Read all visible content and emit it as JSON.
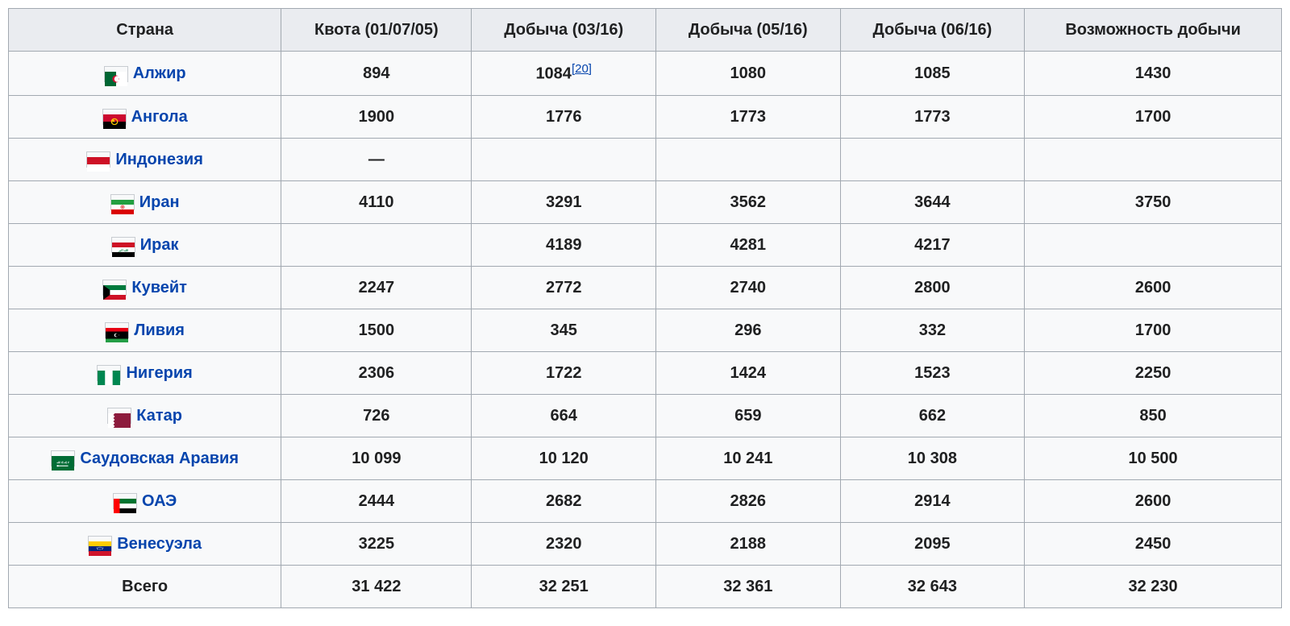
{
  "table": {
    "columns": [
      "Страна",
      "Квота (01/07/05)",
      "Добыча (03/16)",
      "Добыча (05/16)",
      "Добыча (06/16)",
      "Возможность добычи"
    ],
    "col_widths_pct": [
      22,
      16,
      16,
      16,
      16,
      14
    ],
    "link_color": "#0645ad",
    "header_bg": "#eaecf0",
    "cell_bg": "#f8f9fa",
    "border_color": "#a2a9b1",
    "rows": [
      {
        "country": "Алжир",
        "flag_svg": "<rect width='30' height='20' fill='#ffffff'/><rect width='15' height='20' fill='#006633'/><circle cx='15' cy='10' r='5' fill='#d21034'/><circle cx='16.8' cy='10' r='4.2' fill='#ffffff'/><rect x='0' y='0' width='15' height='20' fill='none'/><path d='M15 10 a5 5 0 1 0 0.01 0' fill='none'/><polygon points='17.5,10 19.2,10.6 18.2,9.2 18.2,10.8 19.2,9.4' fill='#d21034'/><circle cx='15' cy='10' r='5' fill='none'/><path d='M 15 5 A 5 5 0 1 0 15 15 A 4 4 0 1 1 15 5' fill='#d21034'/>",
        "quota": "894",
        "p03": "1084",
        "p03_ref": "[20]",
        "p05": "1080",
        "p06": "1085",
        "capacity": "1430"
      },
      {
        "country": "Ангола",
        "flag_svg": "<rect width='30' height='10' fill='#cc092f'/><rect y='10' width='30' height='10' fill='#000000'/><circle cx='15' cy='10' r='4' fill='none' stroke='#ffce00' stroke-width='1.3'/><path d='M13 6 l1 2 l2 -0.5 l-1.5 1.5 l1 2 l-2 -1 l-1.5 1.5 l0.5 -2 l-2 -1 l2 -0.3z' fill='#ffce00'/>",
        "quota": "1900",
        "p03": "1776",
        "p05": "1773",
        "p06": "1773",
        "capacity": "1700"
      },
      {
        "country": "Индонезия",
        "flag_svg": "<rect width='30' height='10' fill='#ce1126'/><rect y='10' width='30' height='10' fill='#ffffff'/>",
        "quota": "—",
        "p03": "",
        "p05": "",
        "p06": "",
        "capacity": ""
      },
      {
        "country": "Иран",
        "flag_svg": "<rect width='30' height='6.67' fill='#239f40'/><rect y='6.67' width='30' height='6.67' fill='#ffffff'/><rect y='13.33' width='30' height='6.67' fill='#da0000'/><circle cx='15' cy='10' r='2.3' fill='none' stroke='#da0000' stroke-width='0.6'/><path d='M15 8 l0 4 M13.5 9 l3 2 M16.5 9 l-3 2' stroke='#da0000' stroke-width='0.5'/>",
        "quota": "4110",
        "p03": "3291",
        "p05": "3562",
        "p06": "3644",
        "capacity": "3750"
      },
      {
        "country": "Ирак",
        "flag_svg": "<rect width='30' height='6.67' fill='#ce1126'/><rect y='6.67' width='30' height='6.67' fill='#ffffff'/><rect y='13.33' width='30' height='6.67' fill='#000000'/><text x='15' y='12' font-size='4' fill='#007a3d' text-anchor='middle' font-family='serif'>الله اكبر</text>",
        "quota": "",
        "p03": "4189",
        "p05": "4281",
        "p06": "4217",
        "capacity": ""
      },
      {
        "country": "Кувейт",
        "flag_svg": "<rect width='30' height='6.67' fill='#007a3d'/><rect y='6.67' width='30' height='6.67' fill='#ffffff'/><rect y='13.33' width='30' height='6.67' fill='#ce1126'/><polygon points='0,0 9,6.67 9,13.33 0,20' fill='#000000'/>",
        "quota": "2247",
        "p03": "2772",
        "p05": "2740",
        "p06": "2800",
        "capacity": "2600"
      },
      {
        "country": "Ливия",
        "flag_svg": "<rect width='30' height='5' fill='#e70013'/><rect y='5' width='30' height='10' fill='#000000'/><rect y='15' width='30' height='5' fill='#239e46'/><circle cx='14' cy='10' r='2.5' fill='#ffffff'/><circle cx='15' cy='10' r='2.1' fill='#000000'/><polygon points='17,10 18.3,10.4 17.5,9.4 17.5,10.6 18.3,9.6' fill='#ffffff'/>",
        "quota": "1500",
        "p03": "345",
        "p05": "296",
        "p06": "332",
        "capacity": "1700"
      },
      {
        "country": "Нигерия",
        "flag_svg": "<rect width='10' height='20' fill='#008751'/><rect x='10' width='10' height='20' fill='#ffffff'/><rect x='20' width='10' height='20' fill='#008751'/>",
        "quota": "2306",
        "p03": "1722",
        "p05": "1424",
        "p06": "1523",
        "capacity": "2250"
      },
      {
        "country": "Катар",
        "flag_svg": "<rect width='30' height='20' fill='#8d1b3d'/><polygon points='0,0 9,0 7,2.2 9,4.4 7,6.7 9,8.9 7,11.1 9,13.3 7,15.6 9,17.8 7,20 0,20' fill='#ffffff'/>",
        "quota": "726",
        "p03": "664",
        "p05": "659",
        "p06": "662",
        "capacity": "850"
      },
      {
        "country": "Саудовская Аравия",
        "flag_svg": "<rect width='30' height='20' fill='#006c35'/><text x='15' y='10' font-size='3.5' fill='#ffffff' text-anchor='middle' font-family='serif'>لا إله إلا الله</text><rect x='8' y='13' width='14' height='1.2' fill='#ffffff'/><rect x='7' y='12.5' width='2' height='2.2' fill='#ffffff'/>",
        "quota": "10 099",
        "p03": "10 120",
        "p05": "10 241",
        "p06": "10 308",
        "capacity": "10 500"
      },
      {
        "country": "ОАЭ",
        "flag_svg": "<rect width='8' height='20' fill='#ff0000'/><rect x='8' width='22' height='6.67' fill='#00732f'/><rect x='8' y='6.67' width='22' height='6.67' fill='#ffffff'/><rect x='8' y='13.33' width='22' height='6.67' fill='#000000'/>",
        "quota": "2444",
        "p03": "2682",
        "p05": "2826",
        "p06": "2914",
        "capacity": "2600"
      },
      {
        "country": "Венесуэла",
        "flag_svg": "<rect width='30' height='6.67' fill='#ffcc00'/><rect y='6.67' width='30' height='6.67' fill='#00247d'/><rect y='13.33' width='30' height='6.67' fill='#cf142b'/><g fill='#ffffff'><circle cx='11' cy='9' r='0.6'/><circle cx='13' cy='8.2' r='0.6'/><circle cx='15' cy='8' r='0.6'/><circle cx='17' cy='8.2' r='0.6'/><circle cx='19' cy='9' r='0.6'/><circle cx='12' cy='10.5' r='0.6'/><circle cx='18' cy='10.5' r='0.6'/><circle cx='15' cy='11' r='0.6'/></g>",
        "quota": "3225",
        "p03": "2320",
        "p05": "2188",
        "p06": "2095",
        "capacity": "2450"
      }
    ],
    "total": {
      "label": "Всего",
      "quota": "31 422",
      "p03": "32 251",
      "p05": "32 361",
      "p06": "32 643",
      "capacity": "32 230"
    }
  }
}
